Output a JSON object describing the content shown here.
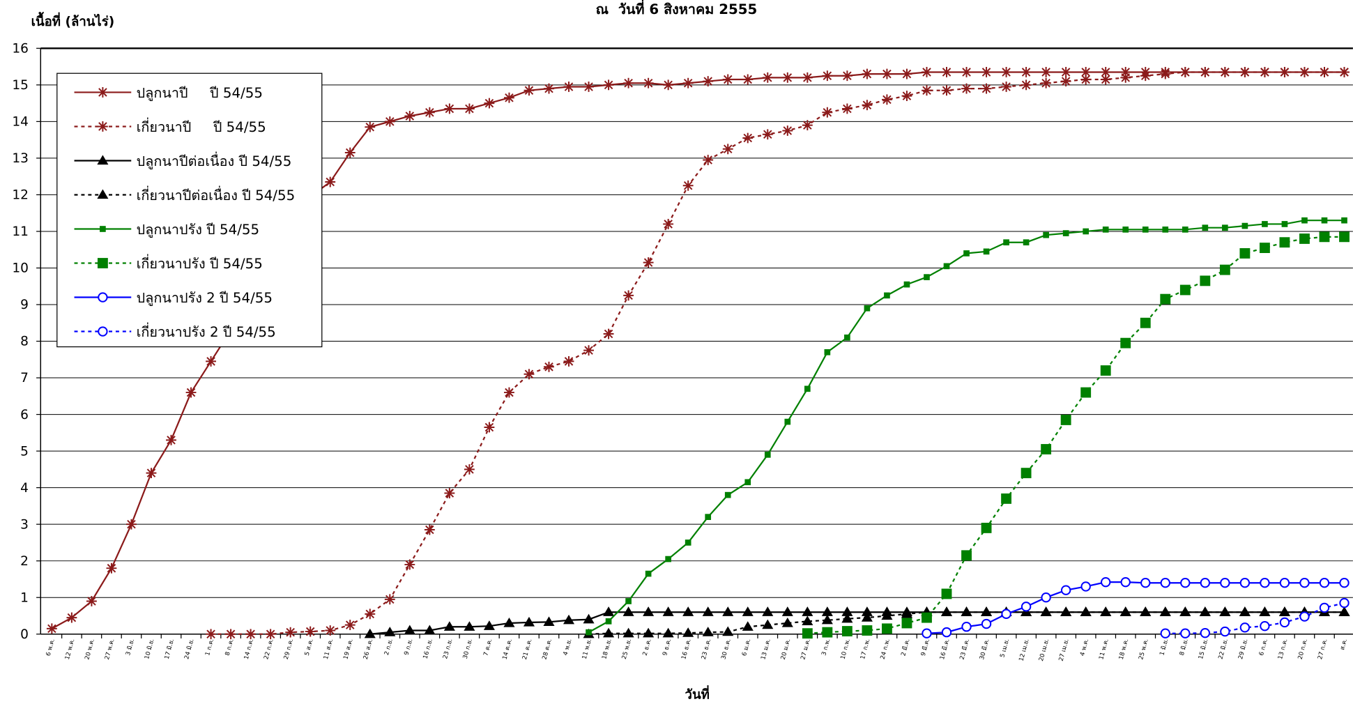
{
  "chart_data": {
    "type": "line",
    "title": "ณ  วันที่ 6 สิงหาคม 2555",
    "y_label": "เนื้อที่ (ล้านไร่)",
    "x_label": "วันที่",
    "categories": [
      "6 พ.ค.",
      "12 พ.ค.",
      "20 พ.ค.",
      "27 พ.ค.",
      "3 มิ.ย.",
      "10 มิ.ย.",
      "17 มิ.ย.",
      "24 มิ.ย.",
      "1 ก.ค.",
      "8 ก.ค.",
      "14 ก.ค.",
      "22 ก.ค.",
      "29 ก.ค.",
      "5 ส.ค.",
      "11 ส.ค.",
      "19 ส.ค.",
      "26 ส.ค.",
      "2 ก.ย.",
      "9 ก.ย.",
      "16 ก.ย.",
      "23 ก.ย.",
      "30 ก.ย.",
      "7 ต.ค.",
      "14 ต.ค.",
      "21 ต.ค.",
      "28 ต.ค.",
      "4 พ.ย.",
      "11 พ.ย.",
      "18 พ.ย.",
      "25 พ.ย.",
      "2 ธ.ค.",
      "9 ธ.ค.",
      "16 ธ.ค.",
      "23 ธ.ค.",
      "30 ธ.ค.",
      "6 ม.ค.",
      "13 ม.ค.",
      "20 ม.ค.",
      "27 ม.ค.",
      "3 ก.พ.",
      "10 ก.พ.",
      "17 ก.พ.",
      "24 ก.พ.",
      "2 มี.ค.",
      "9 มี.ค.",
      "16 มี.ค.",
      "23 มี.ค.",
      "30 มี.ค.",
      "5 เม.ย.",
      "12 เม.ย.",
      "20 เม.ย.",
      "27 เม.ย.",
      "4 พ.ค.",
      "11 พ.ค.",
      "18 พ.ค.",
      "25 พ.ค.",
      "1 มิ.ย.",
      "8 มิ.ย.",
      "15 มิ.ย.",
      "22 มิ.ย.",
      "29 มิ.ย.",
      "6 ก.ค.",
      "13 ก.ค.",
      "20 ก.ค.",
      "27 ก.ค.",
      "ส.ค."
    ],
    "ylim": [
      0,
      16
    ],
    "yticks": [
      0,
      1,
      2,
      3,
      4,
      5,
      6,
      7,
      8,
      9,
      10,
      11,
      12,
      13,
      14,
      15,
      16
    ],
    "grid": true,
    "legend": "upper left",
    "series": [
      {
        "name": "ปลูกนาปี     ปี 54/55",
        "color": "#8b1a1a",
        "style": "solid",
        "marker": "star",
        "values": [
          0.15,
          0.45,
          0.9,
          1.8,
          3.0,
          4.4,
          5.3,
          6.6,
          7.45,
          8.3,
          9.3,
          10.3,
          11.2,
          11.95,
          12.35,
          13.15,
          13.85,
          14.0,
          14.15,
          14.25,
          14.35,
          14.35,
          14.5,
          14.65,
          14.85,
          14.9,
          14.95,
          14.95,
          15.0,
          15.05,
          15.05,
          15.0,
          15.05,
          15.1,
          15.15,
          15.15,
          15.2,
          15.2,
          15.2,
          15.25,
          15.25,
          15.3,
          15.3,
          15.3,
          15.35,
          15.35,
          15.35,
          15.35,
          15.35,
          15.35,
          15.35,
          15.35,
          15.35,
          15.35,
          15.35,
          15.35,
          15.35,
          15.35,
          15.35,
          15.35,
          15.35,
          15.35,
          15.35,
          15.35,
          15.35,
          15.35
        ]
      },
      {
        "name": "เกี่ยวนาปี     ปี 54/55",
        "color": "#8b1a1a",
        "style": "dashed",
        "marker": "star",
        "values": [
          null,
          null,
          null,
          null,
          null,
          null,
          null,
          null,
          0,
          0,
          0,
          0,
          0.05,
          0.07,
          0.1,
          0.25,
          0.55,
          0.95,
          1.9,
          2.85,
          3.85,
          4.5,
          5.65,
          6.6,
          7.1,
          7.3,
          7.45,
          7.75,
          8.2,
          9.25,
          10.15,
          11.2,
          12.25,
          12.95,
          13.25,
          13.55,
          13.65,
          13.75,
          13.9,
          14.25,
          14.35,
          14.45,
          14.6,
          14.7,
          14.85,
          14.85,
          14.9,
          14.9,
          14.95,
          15.0,
          15.05,
          15.1,
          15.15,
          15.15,
          15.2,
          15.25,
          15.3,
          15.35,
          15.35,
          15.35,
          15.35,
          15.35,
          15.35,
          15.35,
          15.35,
          15.35
        ]
      },
      {
        "name": "ปลูกนาปีต่อเนื่อง ปี 54/55",
        "color": "#000000",
        "style": "solid",
        "marker": "triangle",
        "values": [
          null,
          null,
          null,
          null,
          null,
          null,
          null,
          null,
          null,
          null,
          null,
          null,
          null,
          null,
          null,
          null,
          0,
          0.05,
          0.1,
          0.1,
          0.2,
          0.2,
          0.22,
          0.3,
          0.32,
          0.33,
          0.38,
          0.4,
          0.6,
          0.6,
          0.6,
          0.6,
          0.6,
          0.6,
          0.6,
          0.6,
          0.6,
          0.6,
          0.6,
          0.6,
          0.6,
          0.6,
          0.6,
          0.6,
          0.6,
          0.6,
          0.6,
          0.6,
          0.6,
          0.6,
          0.6,
          0.6,
          0.6,
          0.6,
          0.6,
          0.6,
          0.6,
          0.6,
          0.6,
          0.6,
          0.6,
          0.6,
          0.6,
          0.6,
          0.6,
          0.6
        ]
      },
      {
        "name": "เกี่ยวนาปีต่อเนื่อง ปี 54/55",
        "color": "#000000",
        "style": "dashed",
        "marker": "triangle",
        "values": [
          null,
          null,
          null,
          null,
          null,
          null,
          null,
          null,
          null,
          null,
          null,
          null,
          null,
          null,
          null,
          null,
          null,
          null,
          null,
          null,
          null,
          null,
          null,
          null,
          null,
          null,
          null,
          0,
          0.02,
          0.02,
          0.02,
          0.02,
          0.03,
          0.05,
          0.06,
          0.2,
          0.25,
          0.3,
          0.35,
          0.38,
          0.42,
          0.45,
          0.5,
          0.55,
          0.6,
          0.6,
          0.6,
          0.6,
          0.6,
          0.6,
          0.6,
          0.6,
          0.6,
          0.6,
          0.6,
          0.6,
          0.6,
          0.6,
          0.6,
          0.6,
          0.6,
          0.6,
          0.6,
          0.6,
          0.6,
          0.6
        ]
      },
      {
        "name": "ปลูกนาปรัง ปี 54/55",
        "color": "#008000",
        "style": "solid",
        "marker": "small-square",
        "values": [
          null,
          null,
          null,
          null,
          null,
          null,
          null,
          null,
          null,
          null,
          null,
          null,
          null,
          null,
          null,
          null,
          null,
          null,
          null,
          null,
          null,
          null,
          null,
          null,
          null,
          null,
          null,
          0.05,
          0.35,
          0.9,
          1.65,
          2.05,
          2.5,
          3.2,
          3.8,
          4.15,
          4.9,
          5.8,
          6.7,
          7.7,
          8.1,
          8.9,
          9.25,
          9.55,
          9.75,
          10.05,
          10.4,
          10.45,
          10.7,
          10.7,
          10.9,
          10.95,
          11.0,
          11.05,
          11.05,
          11.05,
          11.05,
          11.05,
          11.1,
          11.1,
          11.15,
          11.2,
          11.2,
          11.3,
          11.3,
          11.3
        ]
      },
      {
        "name": "เกี่ยวนาปรัง ปี 54/55",
        "color": "#008000",
        "style": "dashed",
        "marker": "square",
        "values": [
          null,
          null,
          null,
          null,
          null,
          null,
          null,
          null,
          null,
          null,
          null,
          null,
          null,
          null,
          null,
          null,
          null,
          null,
          null,
          null,
          null,
          null,
          null,
          null,
          null,
          null,
          null,
          null,
          null,
          null,
          null,
          null,
          null,
          null,
          null,
          null,
          null,
          null,
          0.02,
          0.05,
          0.08,
          0.1,
          0.15,
          0.3,
          0.45,
          1.1,
          2.15,
          2.9,
          3.7,
          4.4,
          5.05,
          5.85,
          6.6,
          7.2,
          7.95,
          8.5,
          9.15,
          9.4,
          9.65,
          9.95,
          10.4,
          10.55,
          10.7,
          10.8,
          10.85,
          10.85
        ]
      },
      {
        "name": "ปลูกนาปรัง 2 ปี 54/55",
        "color": "#0000ff",
        "style": "solid",
        "marker": "circle",
        "values": [
          null,
          null,
          null,
          null,
          null,
          null,
          null,
          null,
          null,
          null,
          null,
          null,
          null,
          null,
          null,
          null,
          null,
          null,
          null,
          null,
          null,
          null,
          null,
          null,
          null,
          null,
          null,
          null,
          null,
          null,
          null,
          null,
          null,
          null,
          null,
          null,
          null,
          null,
          null,
          null,
          null,
          null,
          null,
          null,
          0.02,
          0.05,
          0.2,
          0.28,
          0.55,
          0.75,
          1.0,
          1.2,
          1.3,
          1.42,
          1.42,
          1.4,
          1.4,
          1.4,
          1.4,
          1.4,
          1.4,
          1.4,
          1.4,
          1.4,
          1.4,
          1.4
        ]
      },
      {
        "name": "เกี่ยวนาปรัง 2 ปี 54/55",
        "color": "#0000ff",
        "style": "dashed",
        "marker": "circle",
        "values": [
          null,
          null,
          null,
          null,
          null,
          null,
          null,
          null,
          null,
          null,
          null,
          null,
          null,
          null,
          null,
          null,
          null,
          null,
          null,
          null,
          null,
          null,
          null,
          null,
          null,
          null,
          null,
          null,
          null,
          null,
          null,
          null,
          null,
          null,
          null,
          null,
          null,
          null,
          null,
          null,
          null,
          null,
          null,
          null,
          null,
          null,
          null,
          null,
          null,
          null,
          null,
          null,
          null,
          null,
          null,
          null,
          0.02,
          0.02,
          0.03,
          0.07,
          0.18,
          0.22,
          0.32,
          0.48,
          0.72,
          0.85
        ]
      }
    ]
  }
}
